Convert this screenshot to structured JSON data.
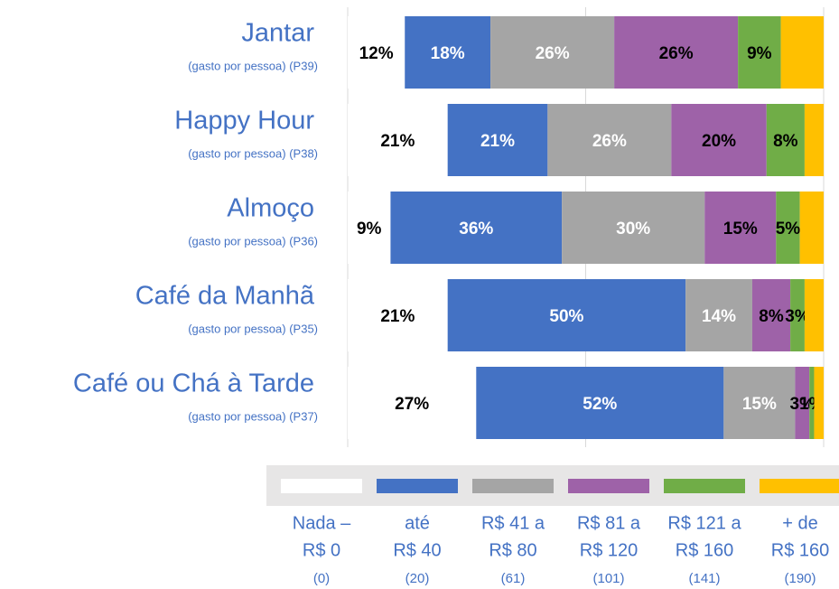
{
  "chart_data": {
    "type": "stacked_barh",
    "categories": [
      "Jantar",
      "Happy Hour",
      "Almoço",
      "Café da Manhã",
      "Café ou Chá à Tarde"
    ],
    "subtitles": [
      "(gasto por pessoa) (P39)",
      "(gasto por pessoa) (P38)",
      "(gasto por pessoa) (P36)",
      "(gasto por pessoa) (P35)",
      "(gasto por pessoa) (P37)"
    ],
    "xlim": [
      0,
      100
    ],
    "xticks": [
      0,
      50,
      100
    ],
    "grid": true,
    "series": [
      {
        "name": [
          "Nada –",
          "R$ 0"
        ],
        "code": "(0)",
        "color": "#ffffff",
        "label_color": "#000000",
        "values": [
          12,
          21,
          9,
          21,
          27
        ],
        "value_labels": [
          "12%",
          "21%",
          "9%",
          "21%",
          "27%"
        ]
      },
      {
        "name": [
          "até",
          "R$ 40"
        ],
        "code": "(20)",
        "color": "#4472c4",
        "label_color": "#ffffff",
        "values": [
          18,
          21,
          36,
          50,
          52
        ],
        "value_labels": [
          "18%",
          "21%",
          "36%",
          "50%",
          "52%"
        ]
      },
      {
        "name": [
          "R$ 41 a",
          "R$ 80"
        ],
        "code": "(61)",
        "color": "#a5a5a5",
        "label_color": "#ffffff",
        "values": [
          26,
          26,
          30,
          14,
          15
        ],
        "value_labels": [
          "26%",
          "26%",
          "30%",
          "14%",
          "15%"
        ]
      },
      {
        "name": [
          "R$ 81 a",
          "R$ 120"
        ],
        "code": "(101)",
        "color": "#9e62a8",
        "label_color": "#000000",
        "values": [
          26,
          20,
          15,
          8,
          3
        ],
        "value_labels": [
          "26%",
          "20%",
          "15%",
          "8%",
          "3%"
        ]
      },
      {
        "name": [
          "R$ 121 a",
          "R$ 160"
        ],
        "code": "(141)",
        "color": "#70ad47",
        "label_color": "#000000",
        "values": [
          9,
          8,
          5,
          3,
          1
        ],
        "value_labels": [
          "9%",
          "8%",
          "5%",
          "3%",
          "1%"
        ]
      },
      {
        "name": [
          "+ de",
          "R$ 160"
        ],
        "code": "(190)",
        "color": "#ffc000",
        "label_color": "#000000",
        "values": [
          9,
          4,
          5,
          4,
          2
        ],
        "value_labels": [
          null,
          null,
          null,
          null,
          null
        ]
      }
    ]
  }
}
